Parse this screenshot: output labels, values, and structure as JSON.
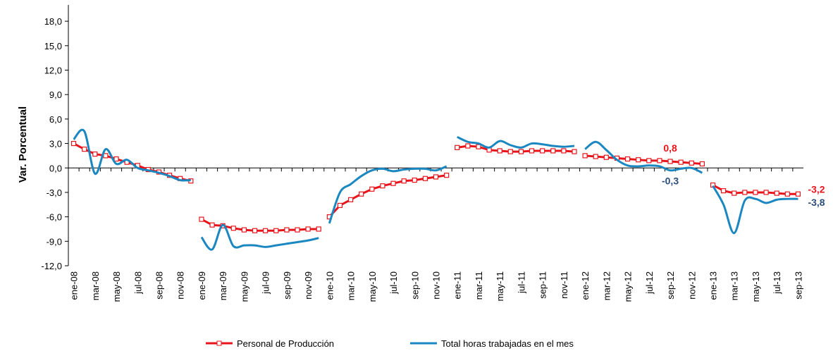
{
  "chart_data": {
    "type": "line",
    "y_label": "Var. Porcentual",
    "ylim": [
      -12,
      20
    ],
    "yticks": [
      {
        "value": -12,
        "label": "-12,0"
      },
      {
        "value": -9,
        "label": "-9,0"
      },
      {
        "value": -6,
        "label": "-6,0"
      },
      {
        "value": -3,
        "label": "-3,0"
      },
      {
        "value": 0,
        "label": "0,0"
      },
      {
        "value": 3,
        "label": "3,0"
      },
      {
        "value": 6,
        "label": "6,0"
      },
      {
        "value": 9,
        "label": "9,0"
      },
      {
        "value": 12,
        "label": "12,0"
      },
      {
        "value": 15,
        "label": "15,0"
      },
      {
        "value": 18,
        "label": "18,0"
      }
    ],
    "categories": [
      "ene-08",
      null,
      "mar-08",
      null,
      "may-08",
      null,
      "jul-08",
      null,
      "sep-08",
      null,
      "nov-08",
      null,
      "ene-09",
      null,
      "mar-09",
      null,
      "may-09",
      null,
      "jul-09",
      null,
      "sep-09",
      null,
      "nov-09",
      null,
      "ene-10",
      null,
      "mar-10",
      null,
      "may-10",
      null,
      "jul-10",
      null,
      "sep-10",
      null,
      "nov-10",
      null,
      "ene-11",
      null,
      "mar-11",
      null,
      "may-11",
      null,
      "jul-11",
      null,
      "sep-11",
      null,
      "nov-11",
      null,
      "ene-12",
      null,
      "mar-12",
      null,
      "may-12",
      null,
      "jul-12",
      null,
      "sep-12",
      null,
      "nov-12",
      null,
      "ene-13",
      null,
      "mar-13",
      null,
      "may-13",
      null,
      "jul-13",
      null,
      "sep-13"
    ],
    "series": [
      {
        "name": "Personal de Producción",
        "color": "#e8141b",
        "marker": "square",
        "smooth": false,
        "values": [
          3.0,
          2.3,
          1.7,
          1.5,
          1.1,
          0.7,
          0.3,
          -0.2,
          -0.5,
          -0.9,
          -1.3,
          -1.6,
          -6.3,
          -7.0,
          -7.1,
          -7.4,
          -7.6,
          -7.7,
          -7.7,
          -7.7,
          -7.6,
          -7.6,
          -7.5,
          -7.5,
          -6.0,
          -4.6,
          -3.9,
          -3.2,
          -2.6,
          -2.2,
          -1.9,
          -1.6,
          -1.5,
          -1.3,
          -1.1,
          -0.9,
          2.5,
          2.7,
          2.6,
          2.2,
          2.1,
          2.0,
          2.0,
          2.1,
          2.1,
          2.1,
          2.1,
          2.0,
          1.5,
          1.4,
          1.3,
          1.2,
          1.1,
          1.0,
          0.9,
          0.9,
          0.8,
          0.7,
          0.6,
          0.5,
          -2.1,
          -2.8,
          -3.1,
          -3.0,
          -3.0,
          -3.0,
          -3.1,
          -3.2,
          -3.2
        ],
        "value_labels": [
          null,
          null,
          null,
          null,
          null,
          null,
          null,
          null,
          null,
          null,
          null,
          null,
          null,
          null,
          null,
          null,
          null,
          null,
          null,
          null,
          null,
          null,
          null,
          null,
          null,
          null,
          null,
          null,
          null,
          null,
          null,
          null,
          null,
          null,
          null,
          null,
          null,
          null,
          null,
          null,
          null,
          null,
          null,
          null,
          null,
          null,
          null,
          null,
          null,
          null,
          null,
          null,
          null,
          null,
          null,
          null,
          "0,8",
          null,
          null,
          null,
          null,
          null,
          null,
          null,
          null,
          null,
          null,
          null,
          "-3,2"
        ]
      },
      {
        "name": "Total horas trabajadas en el mes",
        "color": "#1b87c1",
        "marker": "none",
        "smooth": true,
        "values": [
          3.5,
          4.5,
          -0.7,
          2.3,
          0.5,
          1.0,
          0.0,
          -0.3,
          -0.6,
          -1.0,
          -1.5,
          -1.5,
          -8.5,
          -10.0,
          -7.0,
          -9.6,
          -9.5,
          -9.5,
          -9.7,
          -9.5,
          -9.3,
          -9.1,
          -8.9,
          -8.6,
          -6.8,
          -3.0,
          -2.0,
          -1.0,
          -0.3,
          -0.1,
          -0.4,
          -0.2,
          -0.1,
          -0.1,
          -0.3,
          0.2,
          3.8,
          3.2,
          3.0,
          2.5,
          3.3,
          2.8,
          2.5,
          3.0,
          2.9,
          2.7,
          2.6,
          2.7,
          2.3,
          3.2,
          2.2,
          1.0,
          0.3,
          0.2,
          0.3,
          0.2,
          -0.3,
          -0.1,
          0.0,
          -0.6,
          -2.2,
          -4.5,
          -8.0,
          -4.0,
          -3.8,
          -4.3,
          -3.9,
          -3.8,
          -3.8
        ],
        "value_labels": [
          null,
          null,
          null,
          null,
          null,
          null,
          null,
          null,
          null,
          null,
          null,
          null,
          null,
          null,
          null,
          null,
          null,
          null,
          null,
          null,
          null,
          null,
          null,
          null,
          null,
          null,
          null,
          null,
          null,
          null,
          null,
          null,
          null,
          null,
          null,
          null,
          null,
          null,
          null,
          null,
          null,
          null,
          null,
          null,
          null,
          null,
          null,
          null,
          null,
          null,
          null,
          null,
          null,
          null,
          null,
          null,
          "-0,3",
          null,
          null,
          null,
          null,
          null,
          null,
          null,
          null,
          null,
          null,
          null,
          "-3,8"
        ],
        "label_color": "#2b4d7c"
      }
    ],
    "legend": "bottom"
  }
}
